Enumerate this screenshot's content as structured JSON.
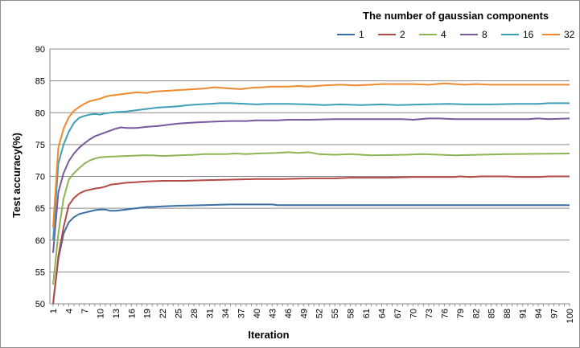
{
  "chart_data": {
    "type": "line",
    "title": "",
    "legend_title": "The number of gaussian components",
    "legend_position": "top-right",
    "xlabel": "Iteration",
    "ylabel": "Test accuracy(%)",
    "ylim": [
      50,
      90
    ],
    "yticks": [
      50,
      55,
      60,
      65,
      70,
      75,
      80,
      85,
      90
    ],
    "xlim": [
      1,
      100
    ],
    "xticks": [
      1,
      4,
      7,
      10,
      13,
      16,
      19,
      22,
      25,
      28,
      31,
      34,
      37,
      40,
      43,
      46,
      49,
      52,
      55,
      58,
      61,
      64,
      67,
      70,
      73,
      76,
      79,
      82,
      85,
      88,
      91,
      94,
      97,
      100
    ],
    "grid": "horizontal",
    "series": [
      {
        "name": "1",
        "color": "#3a6ea5",
        "points": [
          [
            1,
            50
          ],
          [
            2,
            57
          ],
          [
            3,
            61
          ],
          [
            4,
            62.8
          ],
          [
            5,
            63.6
          ],
          [
            6,
            64.1
          ],
          [
            7,
            64.3
          ],
          [
            8,
            64.5
          ],
          [
            9,
            64.7
          ],
          [
            10,
            64.8
          ],
          [
            11,
            64.8
          ],
          [
            12,
            64.6
          ],
          [
            13,
            64.6
          ],
          [
            14,
            64.7
          ],
          [
            15,
            64.8
          ],
          [
            16,
            64.9
          ],
          [
            17,
            65
          ],
          [
            18,
            65.1
          ],
          [
            19,
            65.2
          ],
          [
            20,
            65.2
          ],
          [
            22,
            65.3
          ],
          [
            25,
            65.4
          ],
          [
            30,
            65.5
          ],
          [
            35,
            65.6
          ],
          [
            43,
            65.6
          ],
          [
            44,
            65.5
          ],
          [
            100,
            65.5
          ]
        ]
      },
      {
        "name": "2",
        "color": "#b34a45",
        "points": [
          [
            1,
            50
          ],
          [
            2,
            57.5
          ],
          [
            3,
            62
          ],
          [
            4,
            65.5
          ],
          [
            5,
            66.6
          ],
          [
            6,
            67.3
          ],
          [
            7,
            67.7
          ],
          [
            8,
            67.9
          ],
          [
            9,
            68.1
          ],
          [
            10,
            68.2
          ],
          [
            11,
            68.4
          ],
          [
            12,
            68.7
          ],
          [
            13,
            68.8
          ],
          [
            14,
            68.9
          ],
          [
            15,
            69
          ],
          [
            17,
            69.1
          ],
          [
            19,
            69.2
          ],
          [
            22,
            69.3
          ],
          [
            26,
            69.3
          ],
          [
            30,
            69.4
          ],
          [
            35,
            69.5
          ],
          [
            40,
            69.6
          ],
          [
            45,
            69.6
          ],
          [
            50,
            69.7
          ],
          [
            55,
            69.7
          ],
          [
            58,
            69.8
          ],
          [
            65,
            69.8
          ],
          [
            70,
            69.9
          ],
          [
            78,
            69.9
          ],
          [
            79,
            70
          ],
          [
            81,
            69.9
          ],
          [
            83,
            70
          ],
          [
            88,
            70
          ],
          [
            90,
            69.9
          ],
          [
            94,
            69.9
          ],
          [
            96,
            70
          ],
          [
            100,
            70
          ]
        ]
      },
      {
        "name": "4",
        "color": "#8db553",
        "points": [
          [
            1,
            53
          ],
          [
            2,
            61
          ],
          [
            3,
            66.5
          ],
          [
            4,
            69.5
          ],
          [
            5,
            70.5
          ],
          [
            6,
            71.3
          ],
          [
            7,
            72
          ],
          [
            8,
            72.5
          ],
          [
            9,
            72.8
          ],
          [
            10,
            73
          ],
          [
            12,
            73.1
          ],
          [
            15,
            73.2
          ],
          [
            18,
            73.3
          ],
          [
            20,
            73.3
          ],
          [
            22,
            73.2
          ],
          [
            25,
            73.3
          ],
          [
            28,
            73.4
          ],
          [
            30,
            73.5
          ],
          [
            34,
            73.5
          ],
          [
            36,
            73.6
          ],
          [
            38,
            73.5
          ],
          [
            40,
            73.6
          ],
          [
            44,
            73.7
          ],
          [
            46,
            73.8
          ],
          [
            48,
            73.7
          ],
          [
            50,
            73.8
          ],
          [
            52,
            73.5
          ],
          [
            55,
            73.4
          ],
          [
            58,
            73.5
          ],
          [
            62,
            73.3
          ],
          [
            68,
            73.4
          ],
          [
            72,
            73.5
          ],
          [
            78,
            73.3
          ],
          [
            82,
            73.4
          ],
          [
            88,
            73.5
          ],
          [
            100,
            73.6
          ]
        ]
      },
      {
        "name": "8",
        "color": "#7a58a0",
        "points": [
          [
            1,
            58
          ],
          [
            2,
            67.5
          ],
          [
            3,
            70.5
          ],
          [
            4,
            72.4
          ],
          [
            5,
            73.6
          ],
          [
            6,
            74.5
          ],
          [
            7,
            75.2
          ],
          [
            8,
            75.8
          ],
          [
            9,
            76.3
          ],
          [
            10,
            76.6
          ],
          [
            11,
            76.9
          ],
          [
            12,
            77.2
          ],
          [
            13,
            77.5
          ],
          [
            14,
            77.7
          ],
          [
            15,
            77.6
          ],
          [
            17,
            77.6
          ],
          [
            19,
            77.8
          ],
          [
            21,
            77.9
          ],
          [
            23,
            78.1
          ],
          [
            25,
            78.3
          ],
          [
            27,
            78.4
          ],
          [
            29,
            78.5
          ],
          [
            32,
            78.6
          ],
          [
            35,
            78.7
          ],
          [
            38,
            78.7
          ],
          [
            40,
            78.8
          ],
          [
            44,
            78.8
          ],
          [
            46,
            78.9
          ],
          [
            50,
            78.9
          ],
          [
            55,
            79
          ],
          [
            60,
            79
          ],
          [
            68,
            79
          ],
          [
            70,
            78.9
          ],
          [
            73,
            79.1
          ],
          [
            75,
            79.1
          ],
          [
            78,
            79
          ],
          [
            85,
            79
          ],
          [
            92,
            79
          ],
          [
            94,
            79.1
          ],
          [
            96,
            79
          ],
          [
            100,
            79.1
          ]
        ]
      },
      {
        "name": "16",
        "color": "#3ea0b8",
        "points": [
          [
            1,
            60
          ],
          [
            2,
            72
          ],
          [
            3,
            75
          ],
          [
            4,
            77
          ],
          [
            5,
            78.4
          ],
          [
            6,
            79.2
          ],
          [
            7,
            79.5
          ],
          [
            8,
            79.7
          ],
          [
            9,
            79.8
          ],
          [
            10,
            79.7
          ],
          [
            11,
            79.9
          ],
          [
            12,
            80
          ],
          [
            13,
            80.1
          ],
          [
            15,
            80.2
          ],
          [
            17,
            80.4
          ],
          [
            19,
            80.6
          ],
          [
            21,
            80.8
          ],
          [
            23,
            80.9
          ],
          [
            25,
            81
          ],
          [
            27,
            81.2
          ],
          [
            29,
            81.3
          ],
          [
            31,
            81.4
          ],
          [
            33,
            81.5
          ],
          [
            35,
            81.5
          ],
          [
            38,
            81.4
          ],
          [
            40,
            81.3
          ],
          [
            42,
            81.4
          ],
          [
            46,
            81.4
          ],
          [
            50,
            81.3
          ],
          [
            53,
            81.2
          ],
          [
            56,
            81.3
          ],
          [
            60,
            81.2
          ],
          [
            64,
            81.3
          ],
          [
            67,
            81.2
          ],
          [
            72,
            81.3
          ],
          [
            77,
            81.4
          ],
          [
            80,
            81.3
          ],
          [
            85,
            81.3
          ],
          [
            90,
            81.4
          ],
          [
            94,
            81.4
          ],
          [
            96,
            81.5
          ],
          [
            100,
            81.5
          ]
        ]
      },
      {
        "name": "32",
        "color": "#f08a2d",
        "points": [
          [
            1,
            62
          ],
          [
            2,
            74.5
          ],
          [
            3,
            77.5
          ],
          [
            4,
            79.3
          ],
          [
            5,
            80.3
          ],
          [
            6,
            80.9
          ],
          [
            7,
            81.4
          ],
          [
            8,
            81.8
          ],
          [
            9,
            82
          ],
          [
            10,
            82.2
          ],
          [
            11,
            82.5
          ],
          [
            12,
            82.7
          ],
          [
            13,
            82.8
          ],
          [
            15,
            83
          ],
          [
            17,
            83.2
          ],
          [
            19,
            83.1
          ],
          [
            20,
            83.3
          ],
          [
            22,
            83.4
          ],
          [
            24,
            83.5
          ],
          [
            26,
            83.6
          ],
          [
            28,
            83.7
          ],
          [
            30,
            83.8
          ],
          [
            32,
            84
          ],
          [
            35,
            83.8
          ],
          [
            37,
            83.7
          ],
          [
            39,
            83.9
          ],
          [
            41,
            84
          ],
          [
            43,
            84.1
          ],
          [
            46,
            84.1
          ],
          [
            48,
            84.2
          ],
          [
            50,
            84.1
          ],
          [
            53,
            84.3
          ],
          [
            56,
            84.4
          ],
          [
            59,
            84.3
          ],
          [
            62,
            84.4
          ],
          [
            64,
            84.5
          ],
          [
            67,
            84.5
          ],
          [
            70,
            84.5
          ],
          [
            73,
            84.4
          ],
          [
            76,
            84.6
          ],
          [
            78,
            84.5
          ],
          [
            80,
            84.4
          ],
          [
            82,
            84.5
          ],
          [
            85,
            84.4
          ],
          [
            90,
            84.4
          ],
          [
            100,
            84.4
          ]
        ]
      }
    ]
  }
}
